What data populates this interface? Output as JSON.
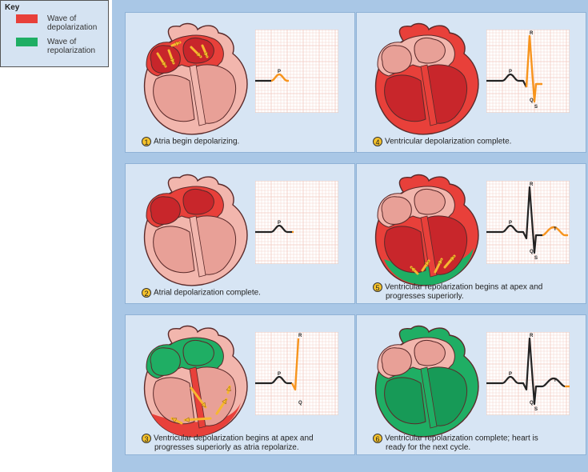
{
  "key": {
    "title": "Key",
    "items": [
      {
        "label": "Wave of depolarization",
        "color": "#e8403a"
      },
      {
        "label": "Wave of repolarization",
        "color": "#1fae64"
      }
    ]
  },
  "panels": [
    {
      "number": "1",
      "caption": "Atria begin depolarizing.",
      "caption2": "",
      "wave_labels": [
        "P"
      ]
    },
    {
      "number": "2",
      "caption": "Atrial depolarization complete.",
      "caption2": "",
      "wave_labels": [
        "P"
      ]
    },
    {
      "number": "3",
      "caption": "Ventricular depolarization begins at apex and",
      "caption2": "progresses superiorly as atria repolarize.",
      "wave_labels": [
        "P",
        "Q",
        "R"
      ]
    },
    {
      "number": "4",
      "caption": "Ventricular depolarization complete.",
      "caption2": "",
      "wave_labels": [
        "P",
        "Q",
        "R",
        "S"
      ]
    },
    {
      "number": "5",
      "caption": "Ventricular repolarization begins at apex and",
      "caption2": "progresses superiorly.",
      "wave_labels": [
        "P",
        "Q",
        "R",
        "S",
        "T"
      ]
    },
    {
      "number": "6",
      "caption": "Ventricular repolarization complete; heart is",
      "caption2": "ready for the next cycle.",
      "wave_labels": [
        "P",
        "Q",
        "R",
        "S",
        "T"
      ]
    }
  ],
  "colors": {
    "heart_wall": "#f2b6ad",
    "heart_outline": "#5a2a2a",
    "depolarized": "#e8403a",
    "depolarized_dark": "#c8262b",
    "repolarized": "#1fae64",
    "chamber": "#e8a097",
    "ecg_grid": "#f2c9bf",
    "ecg_trace": "#222222",
    "ecg_active": "#f7941d",
    "arrow": "#f7b731"
  }
}
